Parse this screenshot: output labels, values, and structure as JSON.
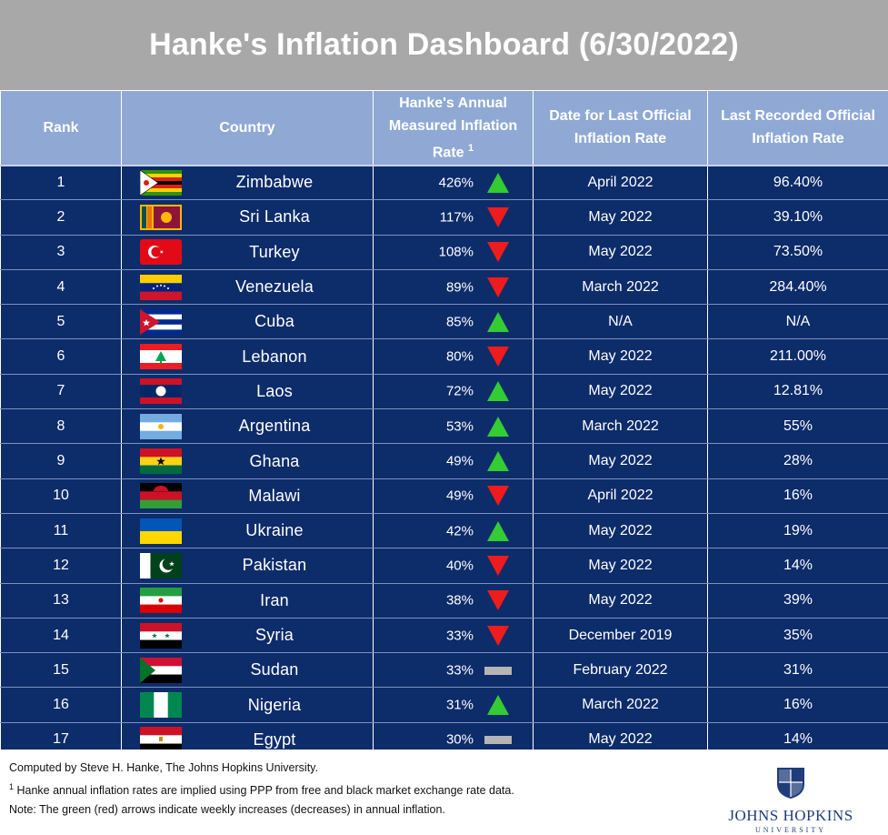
{
  "title": "Hanke's Inflation Dashboard (6/30/2022)",
  "headers": {
    "rank": "Rank",
    "country": "Country",
    "hanke_line1": "Hanke's Annual",
    "hanke_line2": "Measured Inflation",
    "hanke_line3": "Rate",
    "hanke_sup": "1",
    "date_line1": "Date for Last Official",
    "date_line2": "Inflation Rate",
    "rate_line1": "Last Recorded Official",
    "rate_line2": "Inflation Rate"
  },
  "colors": {
    "title_bg": "#a8a8a8",
    "header_bg": "#8fa9d4",
    "row_bg": "#0d2c6a",
    "arrow_up": "#33cc33",
    "arrow_down": "#ee1c1c",
    "flat": "#b5b5b5"
  },
  "rows": [
    {
      "rank": "1",
      "country": "Zimbabwe",
      "flag": "zimbabwe-flag",
      "hanke": "426%",
      "trend": "up",
      "date": "April 2022",
      "official": "96.40%"
    },
    {
      "rank": "2",
      "country": "Sri Lanka",
      "flag": "sri-lanka-flag",
      "hanke": "117%",
      "trend": "down",
      "date": "May 2022",
      "official": "39.10%"
    },
    {
      "rank": "3",
      "country": "Turkey",
      "flag": "turkey-flag",
      "hanke": "108%",
      "trend": "down",
      "date": "May 2022",
      "official": "73.50%"
    },
    {
      "rank": "4",
      "country": "Venezuela",
      "flag": "venezuela-flag",
      "hanke": "89%",
      "trend": "down",
      "date": "March 2022",
      "official": "284.40%"
    },
    {
      "rank": "5",
      "country": "Cuba",
      "flag": "cuba-flag",
      "hanke": "85%",
      "trend": "up",
      "date": "N/A",
      "official": "N/A"
    },
    {
      "rank": "6",
      "country": "Lebanon",
      "flag": "lebanon-flag",
      "hanke": "80%",
      "trend": "down",
      "date": "May 2022",
      "official": "211.00%"
    },
    {
      "rank": "7",
      "country": "Laos",
      "flag": "laos-flag",
      "hanke": "72%",
      "trend": "up",
      "date": "May 2022",
      "official": "12.81%"
    },
    {
      "rank": "8",
      "country": "Argentina",
      "flag": "argentina-flag",
      "hanke": "53%",
      "trend": "up",
      "date": "March 2022",
      "official": "55%"
    },
    {
      "rank": "9",
      "country": "Ghana",
      "flag": "ghana-flag",
      "hanke": "49%",
      "trend": "up",
      "date": "May 2022",
      "official": "28%"
    },
    {
      "rank": "10",
      "country": "Malawi",
      "flag": "malawi-flag",
      "hanke": "49%",
      "trend": "down",
      "date": "April 2022",
      "official": "16%"
    },
    {
      "rank": "11",
      "country": "Ukraine",
      "flag": "ukraine-flag",
      "hanke": "42%",
      "trend": "up",
      "date": "May 2022",
      "official": "19%"
    },
    {
      "rank": "12",
      "country": "Pakistan",
      "flag": "pakistan-flag",
      "hanke": "40%",
      "trend": "down",
      "date": "May 2022",
      "official": "14%"
    },
    {
      "rank": "13",
      "country": "Iran",
      "flag": "iran-flag",
      "hanke": "38%",
      "trend": "down",
      "date": "May 2022",
      "official": "39%"
    },
    {
      "rank": "14",
      "country": "Syria",
      "flag": "syria-flag",
      "hanke": "33%",
      "trend": "down",
      "date": "December 2019",
      "official": "35%"
    },
    {
      "rank": "15",
      "country": "Sudan",
      "flag": "sudan-flag",
      "hanke": "33%",
      "trend": "flat",
      "date": "February 2022",
      "official": "31%"
    },
    {
      "rank": "16",
      "country": "Nigeria",
      "flag": "nigeria-flag",
      "hanke": "31%",
      "trend": "up",
      "date": "March 2022",
      "official": "16%"
    },
    {
      "rank": "17",
      "country": "Egypt",
      "flag": "egypt-flag",
      "hanke": "30%",
      "trend": "flat",
      "date": "May 2022",
      "official": "14%"
    }
  ],
  "footer": {
    "line1": "Computed by Steve H. Hanke, The Johns Hopkins University.",
    "line2_sup": "1",
    "line2": " Hanke annual inflation rates are implied using PPP from free and black market exchange rate data.",
    "line3": "Note: The green (red) arrows indicate weekly increases (decreases) in annual inflation.",
    "logo_name": "JOHNS HOPKINS",
    "logo_sub": "UNIVERSITY"
  }
}
